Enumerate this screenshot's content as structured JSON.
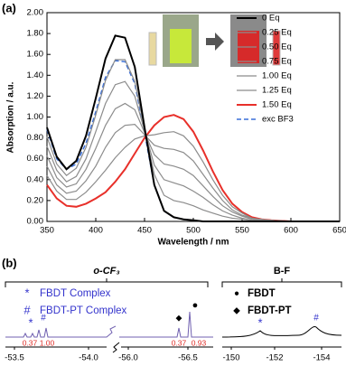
{
  "chart_data": {
    "type": "line",
    "xlabel": "Wavelength / nm",
    "ylabel": "Absorption / a.u.",
    "x": [
      350,
      360,
      370,
      380,
      390,
      400,
      410,
      420,
      430,
      440,
      450,
      460,
      470,
      480,
      490,
      500,
      510,
      520,
      530,
      540,
      550,
      560,
      570,
      580,
      600,
      650
    ],
    "series": [
      {
        "name": "0 Eq",
        "color": "#000000",
        "width": 2,
        "dash": false,
        "values": [
          0.9,
          0.62,
          0.5,
          0.58,
          0.82,
          1.18,
          1.56,
          1.78,
          1.76,
          1.48,
          0.9,
          0.35,
          0.1,
          0.04,
          0.02,
          0.01,
          0,
          0,
          0,
          0,
          0,
          0,
          0,
          0,
          0,
          0
        ]
      },
      {
        "name": "0.25 Eq",
        "color": "#8c8c8c",
        "width": 1.2,
        "dash": false,
        "values": [
          0.81,
          0.55,
          0.44,
          0.51,
          0.71,
          1.02,
          1.35,
          1.55,
          1.55,
          1.34,
          0.88,
          0.45,
          0.25,
          0.2,
          0.18,
          0.15,
          0.11,
          0.08,
          0.05,
          0.03,
          0.02,
          0.01,
          0,
          0,
          0,
          0
        ]
      },
      {
        "name": "0.50 Eq",
        "color": "#8c8c8c",
        "width": 1.2,
        "dash": false,
        "values": [
          0.72,
          0.49,
          0.38,
          0.43,
          0.6,
          0.86,
          1.13,
          1.31,
          1.34,
          1.2,
          0.87,
          0.54,
          0.4,
          0.37,
          0.34,
          0.29,
          0.23,
          0.16,
          0.1,
          0.06,
          0.03,
          0.01,
          0.01,
          0,
          0,
          0
        ]
      },
      {
        "name": "0.75 Eq",
        "color": "#8c8c8c",
        "width": 1.2,
        "dash": false,
        "values": [
          0.63,
          0.42,
          0.33,
          0.36,
          0.5,
          0.7,
          0.92,
          1.08,
          1.13,
          1.07,
          0.85,
          0.64,
          0.55,
          0.53,
          0.5,
          0.44,
          0.34,
          0.24,
          0.15,
          0.09,
          0.05,
          0.02,
          0.01,
          0.01,
          0,
          0
        ]
      },
      {
        "name": "1.00 Eq",
        "color": "#8c8c8c",
        "width": 1.2,
        "dash": false,
        "values": [
          0.53,
          0.35,
          0.27,
          0.29,
          0.39,
          0.53,
          0.71,
          0.85,
          0.92,
          0.93,
          0.83,
          0.73,
          0.7,
          0.69,
          0.66,
          0.58,
          0.45,
          0.32,
          0.2,
          0.11,
          0.06,
          0.03,
          0.01,
          0.01,
          0,
          0
        ]
      },
      {
        "name": "1.25 Eq",
        "color": "#8c8c8c",
        "width": 1.2,
        "dash": false,
        "values": [
          0.44,
          0.29,
          0.21,
          0.21,
          0.28,
          0.38,
          0.49,
          0.61,
          0.71,
          0.79,
          0.82,
          0.83,
          0.85,
          0.86,
          0.82,
          0.72,
          0.57,
          0.4,
          0.25,
          0.14,
          0.08,
          0.03,
          0.02,
          0.01,
          0,
          0
        ]
      },
      {
        "name": "1.50 Eq",
        "color": "#e8302a",
        "width": 2,
        "dash": false,
        "values": [
          0.35,
          0.22,
          0.15,
          0.14,
          0.17,
          0.22,
          0.28,
          0.38,
          0.5,
          0.65,
          0.8,
          0.92,
          1.0,
          1.02,
          0.98,
          0.86,
          0.68,
          0.48,
          0.3,
          0.17,
          0.09,
          0.04,
          0.02,
          0.01,
          0,
          0
        ]
      },
      {
        "name": "exc BF3",
        "color": "#3a6fd8",
        "width": 1.5,
        "dash": true,
        "values": [
          0.88,
          0.6,
          0.5,
          0.55,
          0.75,
          1.05,
          1.38,
          1.54,
          1.53,
          1.32,
          0.85,
          0.35,
          0.1,
          0.04,
          0.02,
          0.01,
          0,
          0,
          0,
          0,
          0,
          0,
          0,
          0,
          0,
          0
        ]
      }
    ],
    "xlim": [
      350,
      650
    ],
    "xticks": [
      350,
      400,
      450,
      500,
      550,
      600,
      650
    ],
    "ylim": [
      0,
      2
    ],
    "yticks": [
      {
        "value": 0,
        "label": "0.00"
      },
      {
        "value": 0.2,
        "label": "0.20"
      },
      {
        "value": 0.4,
        "label": "0.40"
      },
      {
        "value": 0.6,
        "label": "0.60"
      },
      {
        "value": 0.8,
        "label": "0.80"
      },
      {
        "value": 1,
        "label": "1.00"
      },
      {
        "value": 1.2,
        "label": "1.20"
      },
      {
        "value": 1.4,
        "label": "1.40"
      },
      {
        "value": 1.6,
        "label": "1.60"
      },
      {
        "value": 1.8,
        "label": "1.80"
      },
      {
        "value": 2,
        "label": "2.00"
      }
    ],
    "grid": false,
    "legend": "right"
  },
  "panel_labels": [
    "(a)",
    "(b)"
  ],
  "panel_b": {
    "left_title": "o-CF₃",
    "right_title": "B-F",
    "left_legend": [
      {
        "symbol": "*",
        "text": "FBDT Complex"
      },
      {
        "symbol": "#",
        "text": "FBDT-PT Complex"
      }
    ],
    "right_legend": [
      {
        "symbol": "●",
        "text": "FBDT"
      },
      {
        "symbol": "◆",
        "text": "FBDT-PT"
      }
    ],
    "integrals": [
      "0.37",
      "1.00",
      "0.37",
      "0.93"
    ],
    "axis_labels": [
      "-53.5",
      "-54.0",
      "-56.0",
      "-56.5",
      "-150",
      "-152",
      "-154"
    ]
  }
}
